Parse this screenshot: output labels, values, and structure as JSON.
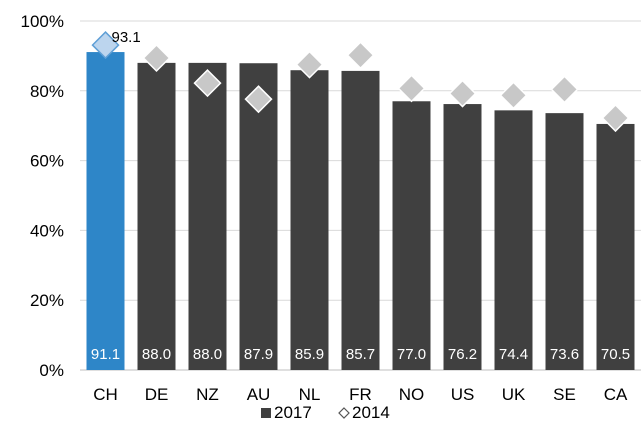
{
  "chart_data": {
    "type": "bar",
    "categories": [
      "CH",
      "DE",
      "NZ",
      "AU",
      "NL",
      "FR",
      "NO",
      "US",
      "UK",
      "SE",
      "CA"
    ],
    "series": [
      {
        "name": "2017",
        "kind": "bar",
        "values": [
          91.1,
          88.0,
          88.0,
          87.9,
          85.9,
          85.7,
          77.0,
          76.2,
          74.4,
          73.6,
          70.5
        ],
        "labels": [
          "91.1",
          "88.0",
          "88.0",
          "87.9",
          "85.9",
          "85.7",
          "77.0",
          "76.2",
          "74.4",
          "73.6",
          "70.5"
        ],
        "color": "#404040",
        "highlight_index": 0,
        "highlight_color": "#2e86c8"
      },
      {
        "name": "2014",
        "kind": "marker",
        "marker": "diamond",
        "values": [
          93.1,
          89.4,
          82.2,
          77.6,
          87.5,
          90.2,
          80.7,
          79.2,
          78.7,
          80.4,
          72.2
        ],
        "color": "#c8c8c8",
        "highlight_color": "#bcd5ee"
      }
    ],
    "annotation": {
      "category": "CH",
      "text": "93.1"
    },
    "yticks": [
      "0%",
      "20%",
      "40%",
      "60%",
      "80%",
      "100%"
    ],
    "ylim": [
      0,
      100
    ],
    "grid": true,
    "legend_position": "bottom",
    "xlabel": "",
    "ylabel": "",
    "title": ""
  }
}
